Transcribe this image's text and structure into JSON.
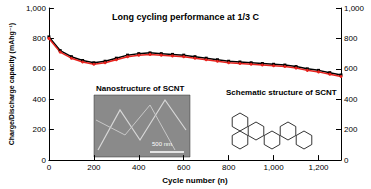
{
  "chart_data": {
    "type": "line",
    "x_label": "Cycle number (n)",
    "y_label": "Charge/Discharge capacity (mAhg⁻¹)",
    "annotations": [
      "Long cycling performance at 1/3 C",
      "Nanostructure of SCNT",
      "500 nm",
      "Schematic structure of SCNT"
    ],
    "x": [
      0,
      50,
      100,
      150,
      200,
      250,
      300,
      350,
      400,
      450,
      500,
      550,
      600,
      650,
      700,
      750,
      800,
      850,
      900,
      950,
      1000,
      1050,
      1100,
      1150,
      1200,
      1250,
      1300
    ],
    "series": [
      {
        "color": "#000000",
        "marker": "square",
        "values": [
          810,
          720,
          680,
          655,
          640,
          650,
          670,
          690,
          700,
          705,
          700,
          695,
          690,
          680,
          670,
          660,
          650,
          645,
          640,
          635,
          630,
          625,
          615,
          600,
          590,
          575,
          560
        ]
      },
      {
        "color": "#e8231e",
        "marker": "circle",
        "values": [
          800,
          710,
          670,
          645,
          630,
          640,
          660,
          680,
          690,
          695,
          690,
          685,
          680,
          670,
          660,
          650,
          640,
          635,
          630,
          625,
          620,
          615,
          605,
          590,
          580,
          565,
          550
        ]
      }
    ],
    "xlim": [
      0,
      1300
    ],
    "xticks": [
      0,
      200,
      400,
      600,
      800,
      1000,
      1200
    ],
    "ylim": [
      0,
      1000
    ],
    "yticks": [
      0,
      200,
      400,
      600,
      800,
      1000
    ],
    "y2lim": [
      0,
      1000
    ],
    "y2ticks": [
      0,
      200,
      400,
      600,
      800,
      1000
    ],
    "grid": false
  }
}
